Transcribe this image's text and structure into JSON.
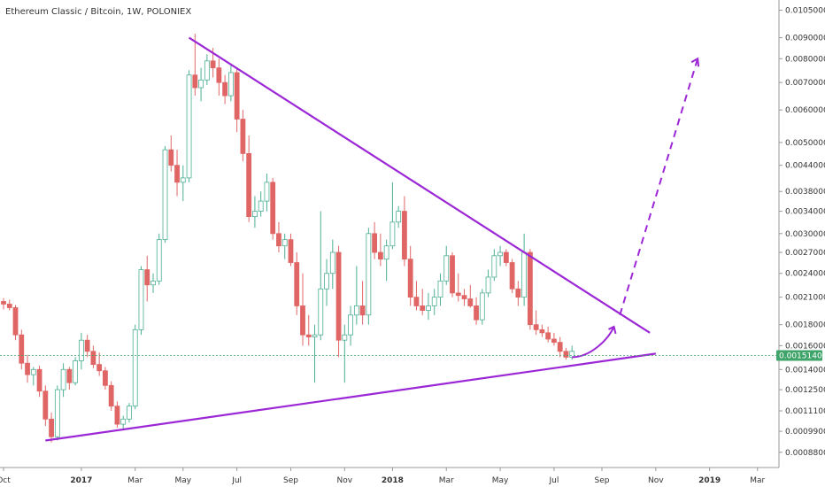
{
  "chart_data": {
    "type": "candlestick",
    "title": "Ethereum Classic / Bitcoin, 1W, POLONIEX",
    "scale": "log",
    "ylim": [
      0.00082,
      0.0109
    ],
    "y_ticks": [
      {
        "value": 0.0105,
        "label": "0.01050000"
      },
      {
        "value": 0.009,
        "label": "0.00900000"
      },
      {
        "value": 0.008,
        "label": "0.00800000"
      },
      {
        "value": 0.007,
        "label": "0.00700000"
      },
      {
        "value": 0.006,
        "label": "0.00600000"
      },
      {
        "value": 0.005,
        "label": "0.00500000"
      },
      {
        "value": 0.0044,
        "label": "0.00440000"
      },
      {
        "value": 0.0038,
        "label": "0.00380000"
      },
      {
        "value": 0.0034,
        "label": "0.00340000"
      },
      {
        "value": 0.003,
        "label": "0.00300000"
      },
      {
        "value": 0.0027,
        "label": "0.00270000"
      },
      {
        "value": 0.0024,
        "label": "0.00240000"
      },
      {
        "value": 0.0021,
        "label": "0.00210000"
      },
      {
        "value": 0.0018,
        "label": "0.00180000"
      },
      {
        "value": 0.0016,
        "label": "0.00160000"
      },
      {
        "value": 0.0014,
        "label": "0.00140000"
      },
      {
        "value": 0.00125,
        "label": "0.00125000"
      },
      {
        "value": 0.00111,
        "label": "0.00111000"
      },
      {
        "value": 0.00099,
        "label": "0.00099000"
      },
      {
        "value": 0.00088,
        "label": "0.00088000"
      }
    ],
    "x_ticks": [
      {
        "week": 0,
        "label": "Oct",
        "bold": false
      },
      {
        "week": 13,
        "label": "2017",
        "bold": true
      },
      {
        "week": 22,
        "label": "Mar",
        "bold": false
      },
      {
        "week": 30,
        "label": "May",
        "bold": false
      },
      {
        "week": 39,
        "label": "Jul",
        "bold": false
      },
      {
        "week": 48,
        "label": "Sep",
        "bold": false
      },
      {
        "week": 57,
        "label": "Nov",
        "bold": false
      },
      {
        "week": 65,
        "label": "2018",
        "bold": true
      },
      {
        "week": 74,
        "label": "Mar",
        "bold": false
      },
      {
        "week": 83,
        "label": "May",
        "bold": false
      },
      {
        "week": 92,
        "label": "Jul",
        "bold": false
      },
      {
        "week": 100,
        "label": "Sep",
        "bold": false
      },
      {
        "week": 109,
        "label": "Nov",
        "bold": false
      },
      {
        "week": 118,
        "label": "2019",
        "bold": true
      },
      {
        "week": 126,
        "label": "Mar",
        "bold": false
      }
    ],
    "last_price": {
      "value": 0.001514,
      "label": "0.00151400"
    },
    "candles": [
      [
        0,
        0.00205,
        0.00209,
        0.00196,
        0.00202
      ],
      [
        1,
        0.00202,
        0.00207,
        0.00195,
        0.00198
      ],
      [
        2,
        0.00198,
        0.00201,
        0.00165,
        0.0017
      ],
      [
        3,
        0.0017,
        0.00175,
        0.0014,
        0.00145
      ],
      [
        4,
        0.00145,
        0.00152,
        0.0013,
        0.00136
      ],
      [
        5,
        0.00136,
        0.00142,
        0.00128,
        0.0014
      ],
      [
        6,
        0.0014,
        0.00143,
        0.0012,
        0.00124
      ],
      [
        7,
        0.00124,
        0.00128,
        0.00102,
        0.00106
      ],
      [
        8,
        0.00106,
        0.0011,
        0.00093,
        0.00096
      ],
      [
        9,
        0.00096,
        0.00128,
        0.00094,
        0.00125
      ],
      [
        10,
        0.00125,
        0.00145,
        0.0012,
        0.0014
      ],
      [
        11,
        0.0014,
        0.00142,
        0.00125,
        0.0013
      ],
      [
        12,
        0.0013,
        0.0015,
        0.00128,
        0.00147
      ],
      [
        13,
        0.00147,
        0.00172,
        0.0014,
        0.00165
      ],
      [
        14,
        0.00165,
        0.0017,
        0.0015,
        0.00155
      ],
      [
        15,
        0.00155,
        0.0016,
        0.00141,
        0.00144
      ],
      [
        16,
        0.00144,
        0.00154,
        0.00135,
        0.00139
      ],
      [
        17,
        0.00139,
        0.00142,
        0.00125,
        0.00128
      ],
      [
        18,
        0.00128,
        0.00131,
        0.00111,
        0.00114
      ],
      [
        19,
        0.00114,
        0.00117,
        0.00101,
        0.00103
      ],
      [
        20,
        0.00103,
        0.00108,
        0.001,
        0.00106
      ],
      [
        21,
        0.00106,
        0.00116,
        0.00104,
        0.00114
      ],
      [
        22,
        0.00114,
        0.0018,
        0.00112,
        0.00175
      ],
      [
        23,
        0.00175,
        0.0025,
        0.0017,
        0.00245
      ],
      [
        24,
        0.00245,
        0.00265,
        0.00205,
        0.00225
      ],
      [
        25,
        0.00225,
        0.0024,
        0.00215,
        0.0023
      ],
      [
        26,
        0.0023,
        0.003,
        0.00225,
        0.0029
      ],
      [
        27,
        0.0029,
        0.0049,
        0.00285,
        0.0048
      ],
      [
        28,
        0.0048,
        0.0052,
        0.00425,
        0.0044
      ],
      [
        29,
        0.0044,
        0.0048,
        0.0037,
        0.004
      ],
      [
        30,
        0.004,
        0.0044,
        0.0036,
        0.0041
      ],
      [
        31,
        0.0041,
        0.0075,
        0.004,
        0.0073
      ],
      [
        32,
        0.0073,
        0.0092,
        0.0065,
        0.0068
      ],
      [
        33,
        0.0068,
        0.0076,
        0.0063,
        0.0071
      ],
      [
        34,
        0.0071,
        0.0082,
        0.0069,
        0.0079
      ],
      [
        35,
        0.0079,
        0.0085,
        0.0072,
        0.0076
      ],
      [
        36,
        0.0076,
        0.008,
        0.0065,
        0.007
      ],
      [
        37,
        0.007,
        0.0073,
        0.0062,
        0.0065
      ],
      [
        38,
        0.0065,
        0.0077,
        0.0063,
        0.0074
      ],
      [
        39,
        0.0074,
        0.0076,
        0.0053,
        0.0057
      ],
      [
        40,
        0.0057,
        0.006,
        0.0045,
        0.0047
      ],
      [
        41,
        0.0047,
        0.0052,
        0.0032,
        0.0033
      ],
      [
        42,
        0.0033,
        0.0037,
        0.0031,
        0.0034
      ],
      [
        43,
        0.0034,
        0.0038,
        0.0033,
        0.0036
      ],
      [
        44,
        0.0036,
        0.0042,
        0.0034,
        0.004
      ],
      [
        45,
        0.004,
        0.0041,
        0.0029,
        0.003
      ],
      [
        46,
        0.003,
        0.0032,
        0.0027,
        0.0028
      ],
      [
        47,
        0.0028,
        0.003,
        0.0026,
        0.0029
      ],
      [
        48,
        0.0029,
        0.003,
        0.0025,
        0.00255
      ],
      [
        49,
        0.00255,
        0.0027,
        0.0019,
        0.002
      ],
      [
        50,
        0.002,
        0.0024,
        0.0016,
        0.0017
      ],
      [
        51,
        0.0017,
        0.0019,
        0.0016,
        0.00168
      ],
      [
        52,
        0.00168,
        0.0018,
        0.0013,
        0.0017
      ],
      [
        53,
        0.0017,
        0.0034,
        0.00165,
        0.0022
      ],
      [
        54,
        0.0022,
        0.0026,
        0.002,
        0.0024
      ],
      [
        55,
        0.0024,
        0.0029,
        0.0022,
        0.0027
      ],
      [
        56,
        0.0027,
        0.0028,
        0.0015,
        0.00165
      ],
      [
        57,
        0.00165,
        0.0018,
        0.0013,
        0.0017
      ],
      [
        58,
        0.0017,
        0.002,
        0.0016,
        0.0019
      ],
      [
        59,
        0.0019,
        0.0025,
        0.0018,
        0.002
      ],
      [
        60,
        0.002,
        0.0023,
        0.0018,
        0.0019
      ],
      [
        61,
        0.0019,
        0.0031,
        0.0018,
        0.003
      ],
      [
        62,
        0.003,
        0.0032,
        0.0026,
        0.0027
      ],
      [
        63,
        0.0027,
        0.003,
        0.0025,
        0.0026
      ],
      [
        64,
        0.0026,
        0.0029,
        0.0023,
        0.0028
      ],
      [
        65,
        0.0028,
        0.004,
        0.00275,
        0.0032
      ],
      [
        66,
        0.0032,
        0.0035,
        0.0031,
        0.0034
      ],
      [
        67,
        0.0034,
        0.0037,
        0.0025,
        0.0026
      ],
      [
        68,
        0.0026,
        0.0028,
        0.002,
        0.0021
      ],
      [
        69,
        0.0021,
        0.0023,
        0.00195,
        0.002
      ],
      [
        70,
        0.002,
        0.0022,
        0.0019,
        0.00195
      ],
      [
        71,
        0.00195,
        0.00215,
        0.00185,
        0.002
      ],
      [
        72,
        0.002,
        0.0022,
        0.0019,
        0.0021
      ],
      [
        73,
        0.0021,
        0.0024,
        0.002,
        0.0023
      ],
      [
        74,
        0.0023,
        0.0028,
        0.00225,
        0.00265
      ],
      [
        75,
        0.00265,
        0.0027,
        0.0021,
        0.00215
      ],
      [
        76,
        0.00215,
        0.0024,
        0.00205,
        0.00212
      ],
      [
        77,
        0.00212,
        0.0022,
        0.002,
        0.00208
      ],
      [
        78,
        0.00208,
        0.00225,
        0.00198,
        0.002
      ],
      [
        79,
        0.002,
        0.0021,
        0.0018,
        0.00185
      ],
      [
        80,
        0.00185,
        0.0022,
        0.0018,
        0.00215
      ],
      [
        81,
        0.00215,
        0.00245,
        0.0021,
        0.00235
      ],
      [
        82,
        0.00235,
        0.00275,
        0.0023,
        0.00265
      ],
      [
        83,
        0.00265,
        0.0028,
        0.0025,
        0.0027
      ],
      [
        84,
        0.0027,
        0.00275,
        0.0025,
        0.00255
      ],
      [
        85,
        0.00255,
        0.0026,
        0.00215,
        0.0022
      ],
      [
        86,
        0.0022,
        0.0023,
        0.002,
        0.0021
      ],
      [
        87,
        0.0021,
        0.003,
        0.002,
        0.0027
      ],
      [
        88,
        0.0027,
        0.00275,
        0.00175,
        0.0018
      ],
      [
        89,
        0.0018,
        0.00195,
        0.0017,
        0.00175
      ],
      [
        90,
        0.00175,
        0.0018,
        0.00168,
        0.00172
      ],
      [
        91,
        0.00172,
        0.00178,
        0.00163,
        0.00166
      ],
      [
        92,
        0.00166,
        0.00172,
        0.0016,
        0.00163
      ],
      [
        93,
        0.00163,
        0.00168,
        0.0015,
        0.00155
      ],
      [
        94,
        0.00155,
        0.00158,
        0.00148,
        0.0015
      ],
      [
        95,
        0.0015,
        0.0016,
        0.00148,
        0.00155
      ]
    ],
    "trend_lines": [
      {
        "kind": "resistance",
        "from": {
          "week": 31,
          "value": 0.009
        },
        "to": {
          "week": 108,
          "value": 0.00172
        }
      },
      {
        "kind": "support",
        "from": {
          "week": 7,
          "value": 0.00094
        },
        "to": {
          "week": 109,
          "value": 0.00153
        }
      }
    ],
    "projection": [
      {
        "kind": "curve-arrow",
        "points": [
          [
            95,
            0.0015
          ],
          [
            98,
            0.0015
          ],
          [
            101,
            0.00165
          ],
          [
            102,
            0.00178
          ]
        ]
      },
      {
        "kind": "dashed-arrow",
        "from": {
          "week": 103,
          "value": 0.0019
        },
        "to": {
          "week": 116,
          "value": 0.008
        }
      }
    ],
    "colors": {
      "up": "#4caf93",
      "down": "#e06666",
      "trend": "#9c27d6",
      "last_price": "#3fa46a",
      "axis": "#999999"
    }
  }
}
